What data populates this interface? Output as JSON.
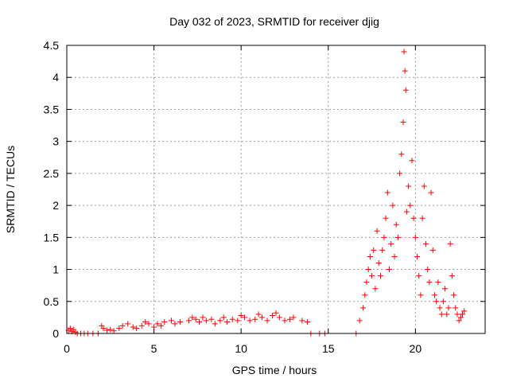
{
  "chart_data": {
    "type": "scatter",
    "title": "Day 032 of 2023, SRMTID for receiver djig",
    "xlabel": "GPS time / hours",
    "ylabel": "SRMTID / TECUs",
    "xlim": [
      0,
      24
    ],
    "ylim": [
      0,
      4.5
    ],
    "xticks": [
      0,
      5,
      10,
      15,
      20
    ],
    "xtick_labels": [
      "0",
      "5",
      "10",
      "15",
      "20"
    ],
    "yticks": [
      0,
      0.5,
      1,
      1.5,
      2,
      2.5,
      3,
      3.5,
      4,
      4.5
    ],
    "ytick_labels": [
      "0",
      "0.5",
      "1",
      "1.5",
      "2",
      "2.5",
      "3",
      "3.5",
      "4",
      "4.5"
    ],
    "grid": true,
    "marker": "+",
    "color": "#ff0000",
    "series": [
      {
        "name": "SRMTID",
        "x": [
          0.1,
          0.2,
          0.3,
          0.4,
          0.5,
          0.6,
          0.8,
          1.0,
          1.2,
          1.5,
          1.8,
          2.0,
          2.1,
          2.3,
          2.5,
          2.7,
          3.0,
          3.2,
          3.5,
          3.8,
          4.0,
          4.3,
          4.5,
          4.7,
          5.0,
          5.2,
          5.4,
          5.6,
          6.0,
          6.2,
          6.5,
          7.0,
          7.2,
          7.4,
          7.6,
          7.8,
          8.0,
          8.3,
          8.5,
          8.8,
          9.0,
          9.2,
          9.5,
          9.8,
          10.0,
          10.2,
          10.5,
          10.8,
          11.0,
          11.2,
          11.5,
          11.8,
          12.0,
          12.2,
          12.5,
          12.8,
          13.0,
          13.5,
          13.8,
          14.0,
          14.5,
          14.8,
          16.6,
          16.8,
          17.0,
          17.1,
          17.2,
          17.3,
          17.4,
          17.5,
          17.6,
          17.7,
          17.8,
          17.9,
          18.0,
          18.1,
          18.2,
          18.3,
          18.4,
          18.5,
          18.6,
          18.7,
          18.8,
          18.9,
          19.0,
          19.1,
          19.2,
          19.3,
          19.35,
          19.4,
          19.45,
          19.5,
          19.6,
          19.7,
          19.8,
          19.9,
          20.0,
          20.1,
          20.2,
          20.3,
          20.4,
          20.5,
          20.6,
          20.7,
          20.8,
          20.9,
          21.0,
          21.1,
          21.2,
          21.3,
          21.4,
          21.5,
          21.6,
          21.7,
          21.8,
          21.9,
          22.0,
          22.1,
          22.2,
          22.3,
          22.4,
          22.5,
          22.6,
          22.7,
          22.8
        ],
        "y": [
          0.05,
          0.08,
          0.03,
          0.06,
          0.02,
          0.0,
          0.0,
          0.0,
          0.0,
          0.0,
          0.0,
          0.12,
          0.08,
          0.05,
          0.06,
          0.04,
          0.08,
          0.12,
          0.15,
          0.1,
          0.08,
          0.12,
          0.18,
          0.15,
          0.1,
          0.15,
          0.12,
          0.18,
          0.2,
          0.15,
          0.18,
          0.2,
          0.25,
          0.22,
          0.18,
          0.25,
          0.2,
          0.22,
          0.15,
          0.2,
          0.25,
          0.18,
          0.22,
          0.2,
          0.28,
          0.25,
          0.2,
          0.22,
          0.3,
          0.25,
          0.2,
          0.28,
          0.32,
          0.25,
          0.2,
          0.22,
          0.25,
          0.2,
          0.18,
          0.0,
          0.0,
          0.0,
          0.0,
          0.2,
          0.4,
          0.6,
          0.8,
          1.0,
          1.2,
          0.9,
          1.3,
          0.7,
          1.6,
          1.1,
          0.9,
          1.3,
          1.5,
          1.8,
          2.2,
          1.0,
          1.4,
          2.0,
          1.2,
          1.7,
          1.5,
          2.5,
          2.8,
          3.3,
          4.4,
          4.1,
          3.8,
          1.9,
          2.3,
          2.0,
          2.7,
          1.8,
          1.5,
          1.2,
          0.9,
          0.6,
          1.8,
          2.3,
          1.4,
          1.0,
          0.8,
          2.2,
          1.3,
          0.6,
          0.5,
          0.8,
          0.4,
          0.3,
          0.5,
          0.7,
          0.3,
          0.4,
          1.4,
          0.9,
          0.6,
          0.4,
          0.3,
          0.2,
          0.25,
          0.3,
          0.35
        ]
      }
    ]
  }
}
